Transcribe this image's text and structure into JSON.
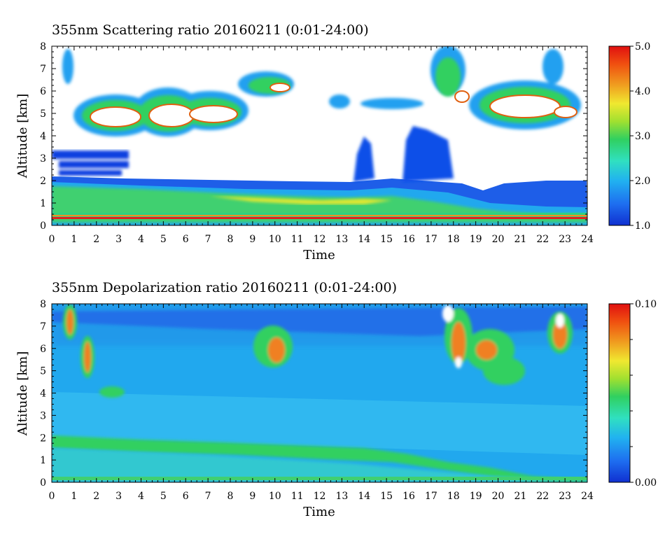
{
  "chart_data": [
    {
      "type": "heatmap",
      "title": "355nm Scattering ratio  20160211 (0:01-24:00)",
      "xlabel": "Time",
      "ylabel": "Altitude [km]",
      "xlim": [
        0,
        24
      ],
      "ylim": [
        0,
        8
      ],
      "x_ticks": [
        "0",
        "1",
        "2",
        "3",
        "4",
        "5",
        "6",
        "7",
        "8",
        "9",
        "10",
        "11",
        "12",
        "13",
        "14",
        "15",
        "16",
        "17",
        "18",
        "19",
        "20",
        "21",
        "22",
        "23",
        "24"
      ],
      "y_ticks": [
        "0",
        "1",
        "2",
        "3",
        "4",
        "5",
        "6",
        "7",
        "8"
      ],
      "colorbar": {
        "range": [
          1.0,
          5.0
        ],
        "tick_labels": [
          "1.0",
          "2.0",
          "3.0",
          "4.0",
          "5.0"
        ]
      },
      "colormap": [
        "#1030d0",
        "#1e6ef0",
        "#21b2f0",
        "#30e0c0",
        "#30d060",
        "#a0e030",
        "#f0e830",
        "#f0a020",
        "#f05010",
        "#e01010"
      ]
    },
    {
      "type": "heatmap",
      "title": "355nm Depolarization ratio  20160211 (0:01-24:00)",
      "xlabel": "Time",
      "ylabel": "Altitude [km]",
      "xlim": [
        0,
        24
      ],
      "ylim": [
        0,
        8
      ],
      "x_ticks": [
        "0",
        "1",
        "2",
        "3",
        "4",
        "5",
        "6",
        "7",
        "8",
        "9",
        "10",
        "11",
        "12",
        "13",
        "14",
        "15",
        "16",
        "17",
        "18",
        "19",
        "20",
        "21",
        "22",
        "23",
        "24"
      ],
      "y_ticks": [
        "0",
        "1",
        "2",
        "3",
        "4",
        "5",
        "6",
        "7",
        "8"
      ],
      "colorbar": {
        "range": [
          0.0,
          0.1
        ],
        "tick_labels": [
          "0.00",
          "0.10"
        ]
      },
      "colormap": [
        "#1030d0",
        "#1e6ef0",
        "#21b2f0",
        "#30e0c0",
        "#30d060",
        "#a0e030",
        "#f0e830",
        "#f0a020",
        "#f05010",
        "#e01010"
      ]
    }
  ]
}
